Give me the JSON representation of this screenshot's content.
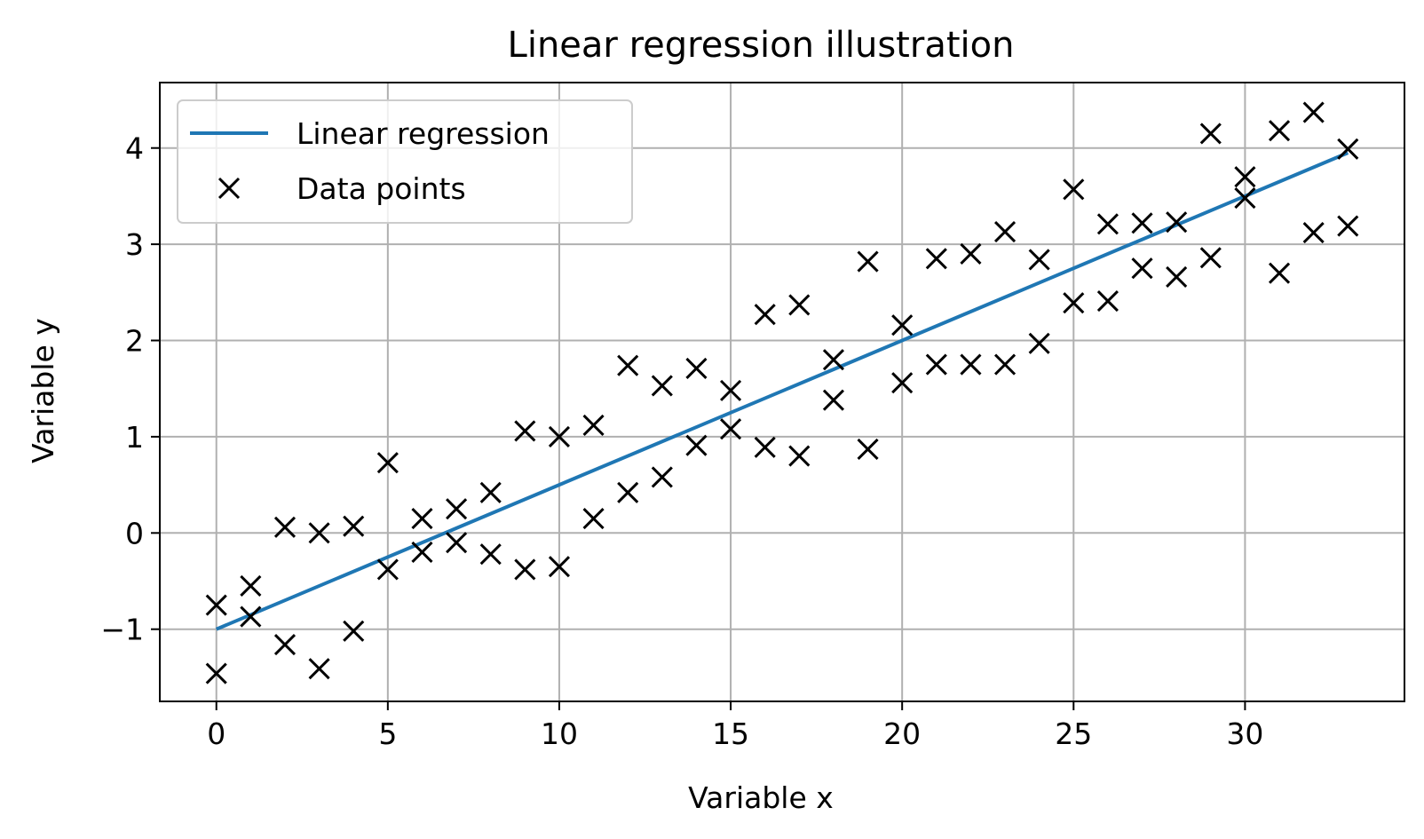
{
  "chart_data": {
    "type": "scatter",
    "title": "Linear regression illustration",
    "xlabel": "Variable x",
    "ylabel": "Variable y",
    "xlim": [
      -1.65,
      34.65
    ],
    "ylim": [
      -1.75,
      4.68
    ],
    "x_ticks": [
      0,
      5,
      10,
      15,
      20,
      25,
      30
    ],
    "x_tick_labels": [
      "0",
      "5",
      "10",
      "15",
      "20",
      "25",
      "30"
    ],
    "y_ticks": [
      -1,
      0,
      1,
      2,
      3,
      4
    ],
    "y_tick_labels": [
      "−1",
      "0",
      "1",
      "2",
      "3",
      "4"
    ],
    "grid": true,
    "legend_position": "top-left",
    "series": [
      {
        "name": "Linear regression",
        "kind": "line",
        "color": "#1f77b4",
        "x": [
          0,
          33
        ],
        "y": [
          -1.0,
          3.95
        ]
      },
      {
        "name": "Data points",
        "kind": "marker",
        "marker": "x",
        "color": "#000000",
        "points": [
          [
            0,
            -0.75
          ],
          [
            0,
            -1.46
          ],
          [
            1,
            -0.55
          ],
          [
            1,
            -0.87
          ],
          [
            2,
            0.06
          ],
          [
            2,
            -1.16
          ],
          [
            3,
            0.0
          ],
          [
            3,
            -1.41
          ],
          [
            4,
            0.07
          ],
          [
            4,
            -1.02
          ],
          [
            5,
            0.73
          ],
          [
            5,
            -0.38
          ],
          [
            6,
            0.15
          ],
          [
            6,
            -0.2
          ],
          [
            7,
            0.25
          ],
          [
            7,
            -0.1
          ],
          [
            8,
            0.42
          ],
          [
            8,
            -0.22
          ],
          [
            9,
            1.06
          ],
          [
            9,
            -0.38
          ],
          [
            10,
            1.0
          ],
          [
            10,
            -0.35
          ],
          [
            11,
            1.12
          ],
          [
            11,
            0.15
          ],
          [
            12,
            1.74
          ],
          [
            12,
            0.42
          ],
          [
            13,
            1.53
          ],
          [
            13,
            0.58
          ],
          [
            14,
            1.71
          ],
          [
            14,
            0.91
          ],
          [
            15,
            1.48
          ],
          [
            15,
            1.08
          ],
          [
            16,
            2.27
          ],
          [
            16,
            0.89
          ],
          [
            17,
            2.37
          ],
          [
            17,
            0.8
          ],
          [
            18,
            1.8
          ],
          [
            18,
            1.38
          ],
          [
            19,
            2.82
          ],
          [
            19,
            0.87
          ],
          [
            20,
            2.16
          ],
          [
            20,
            1.56
          ],
          [
            21,
            2.85
          ],
          [
            21,
            1.75
          ],
          [
            22,
            2.9
          ],
          [
            22,
            1.75
          ],
          [
            23,
            3.13
          ],
          [
            23,
            1.75
          ],
          [
            24,
            2.84
          ],
          [
            24,
            1.97
          ],
          [
            25,
            3.57
          ],
          [
            25,
            2.39
          ],
          [
            26,
            3.21
          ],
          [
            26,
            2.41
          ],
          [
            27,
            3.22
          ],
          [
            27,
            2.75
          ],
          [
            28,
            3.23
          ],
          [
            28,
            2.66
          ],
          [
            29,
            4.15
          ],
          [
            29,
            2.86
          ],
          [
            30,
            3.7
          ],
          [
            30,
            3.48
          ],
          [
            31,
            4.18
          ],
          [
            31,
            2.7
          ],
          [
            32,
            4.37
          ],
          [
            32,
            3.12
          ],
          [
            33,
            3.99
          ],
          [
            33,
            3.19
          ]
        ]
      }
    ]
  }
}
